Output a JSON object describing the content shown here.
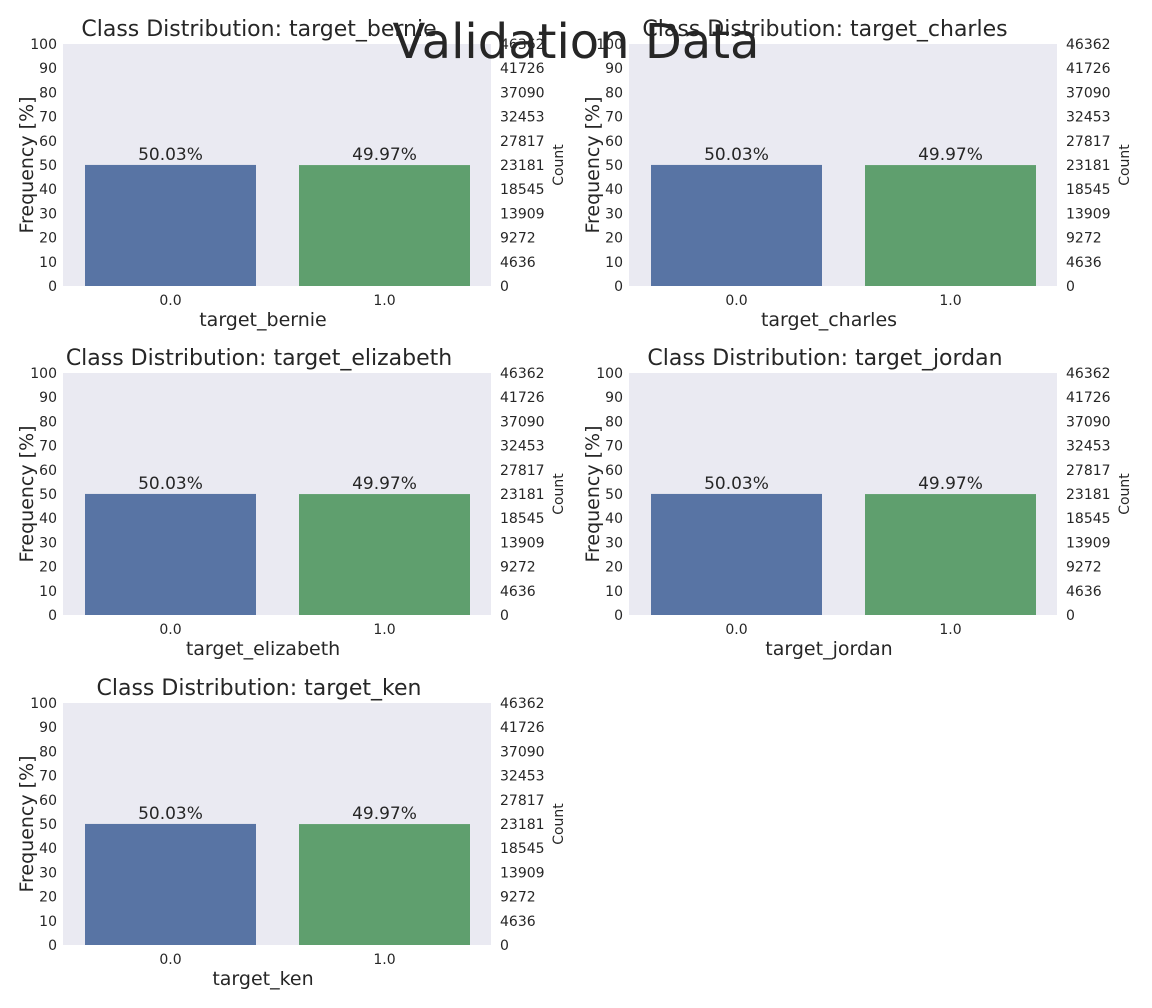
{
  "suptitle": "Validation Data",
  "chart_data": [
    {
      "type": "bar",
      "title": "Class Distribution: target_bernie",
      "xlabel": "target_bernie",
      "ylabel": "Frequency [%]",
      "y2label": "Count",
      "categories": [
        "0.0",
        "1.0"
      ],
      "values": [
        50.03,
        49.97
      ],
      "data_labels": [
        "50.03%",
        "49.97%"
      ],
      "colors": [
        "#5874a4",
        "#5f9f6e"
      ],
      "ylim": [
        0,
        100
      ],
      "yticks": [
        "0",
        "10",
        "20",
        "30",
        "40",
        "50",
        "60",
        "70",
        "80",
        "90",
        "100"
      ],
      "y2ticks": [
        "0",
        "4636",
        "9272",
        "13909",
        "18545",
        "23181",
        "27817",
        "32453",
        "37090",
        "41726",
        "46362"
      ],
      "grid": false,
      "background": "#eaeaf2"
    },
    {
      "type": "bar",
      "title": "Class Distribution: target_charles",
      "xlabel": "target_charles",
      "ylabel": "Frequency [%]",
      "y2label": "Count",
      "categories": [
        "0.0",
        "1.0"
      ],
      "values": [
        50.03,
        49.97
      ],
      "data_labels": [
        "50.03%",
        "49.97%"
      ],
      "colors": [
        "#5874a4",
        "#5f9f6e"
      ],
      "ylim": [
        0,
        100
      ],
      "yticks": [
        "0",
        "10",
        "20",
        "30",
        "40",
        "50",
        "60",
        "70",
        "80",
        "90",
        "100"
      ],
      "y2ticks": [
        "0",
        "4636",
        "9272",
        "13909",
        "18545",
        "23181",
        "27817",
        "32453",
        "37090",
        "41726",
        "46362"
      ],
      "grid": false,
      "background": "#eaeaf2"
    },
    {
      "type": "bar",
      "title": "Class Distribution: target_elizabeth",
      "xlabel": "target_elizabeth",
      "ylabel": "Frequency [%]",
      "y2label": "Count",
      "categories": [
        "0.0",
        "1.0"
      ],
      "values": [
        50.03,
        49.97
      ],
      "data_labels": [
        "50.03%",
        "49.97%"
      ],
      "colors": [
        "#5874a4",
        "#5f9f6e"
      ],
      "ylim": [
        0,
        100
      ],
      "yticks": [
        "0",
        "10",
        "20",
        "30",
        "40",
        "50",
        "60",
        "70",
        "80",
        "90",
        "100"
      ],
      "y2ticks": [
        "0",
        "4636",
        "9272",
        "13909",
        "18545",
        "23181",
        "27817",
        "32453",
        "37090",
        "41726",
        "46362"
      ],
      "grid": false,
      "background": "#eaeaf2"
    },
    {
      "type": "bar",
      "title": "Class Distribution: target_jordan",
      "xlabel": "target_jordan",
      "ylabel": "Frequency [%]",
      "y2label": "Count",
      "categories": [
        "0.0",
        "1.0"
      ],
      "values": [
        50.03,
        49.97
      ],
      "data_labels": [
        "50.03%",
        "49.97%"
      ],
      "colors": [
        "#5874a4",
        "#5f9f6e"
      ],
      "ylim": [
        0,
        100
      ],
      "yticks": [
        "0",
        "10",
        "20",
        "30",
        "40",
        "50",
        "60",
        "70",
        "80",
        "90",
        "100"
      ],
      "y2ticks": [
        "0",
        "4636",
        "9272",
        "13909",
        "18545",
        "23181",
        "27817",
        "32453",
        "37090",
        "41726",
        "46362"
      ],
      "grid": false,
      "background": "#eaeaf2"
    },
    {
      "type": "bar",
      "title": "Class Distribution: target_ken",
      "xlabel": "target_ken",
      "ylabel": "Frequency [%]",
      "y2label": "Count",
      "categories": [
        "0.0",
        "1.0"
      ],
      "values": [
        50.03,
        49.97
      ],
      "data_labels": [
        "50.03%",
        "49.97%"
      ],
      "colors": [
        "#5874a4",
        "#5f9f6e"
      ],
      "ylim": [
        0,
        100
      ],
      "yticks": [
        "0",
        "10",
        "20",
        "30",
        "40",
        "50",
        "60",
        "70",
        "80",
        "90",
        "100"
      ],
      "y2ticks": [
        "0",
        "4636",
        "9272",
        "13909",
        "18545",
        "23181",
        "27817",
        "32453",
        "37090",
        "41726",
        "46362"
      ],
      "grid": false,
      "background": "#eaeaf2"
    }
  ]
}
